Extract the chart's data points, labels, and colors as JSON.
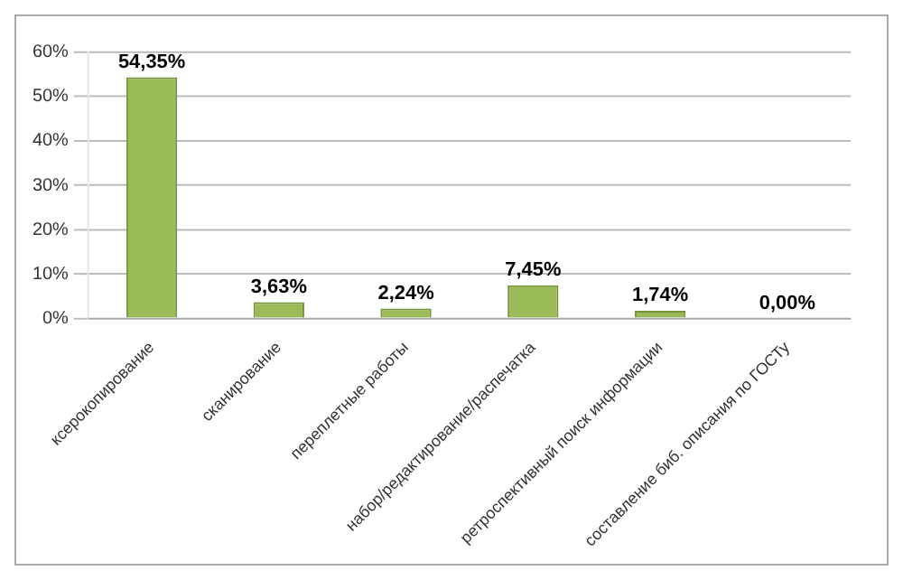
{
  "chart_data": {
    "type": "bar",
    "categories": [
      "ксерокопирование",
      "сканирование",
      "переплетные работы",
      "набор/редактирование/распечатка",
      "ретроспективный поиск информации",
      "составление биб. описания по ГОСТу"
    ],
    "values": [
      54.35,
      3.63,
      2.24,
      7.45,
      1.74,
      0.0
    ],
    "value_labels": [
      "54,35%",
      "3,63%",
      "2,24%",
      "7,45%",
      "1,74%",
      "0,00%"
    ],
    "color": "#9bbb59",
    "ylim": [
      0,
      60
    ],
    "yticks": [
      {
        "value": 0,
        "label": "0%"
      },
      {
        "value": 10,
        "label": "10%"
      },
      {
        "value": 20,
        "label": "20%"
      },
      {
        "value": 30,
        "label": "30%"
      },
      {
        "value": 40,
        "label": "40%"
      },
      {
        "value": 50,
        "label": "50%"
      },
      {
        "value": 60,
        "label": "60%"
      }
    ],
    "grid": "y",
    "legend": false
  }
}
